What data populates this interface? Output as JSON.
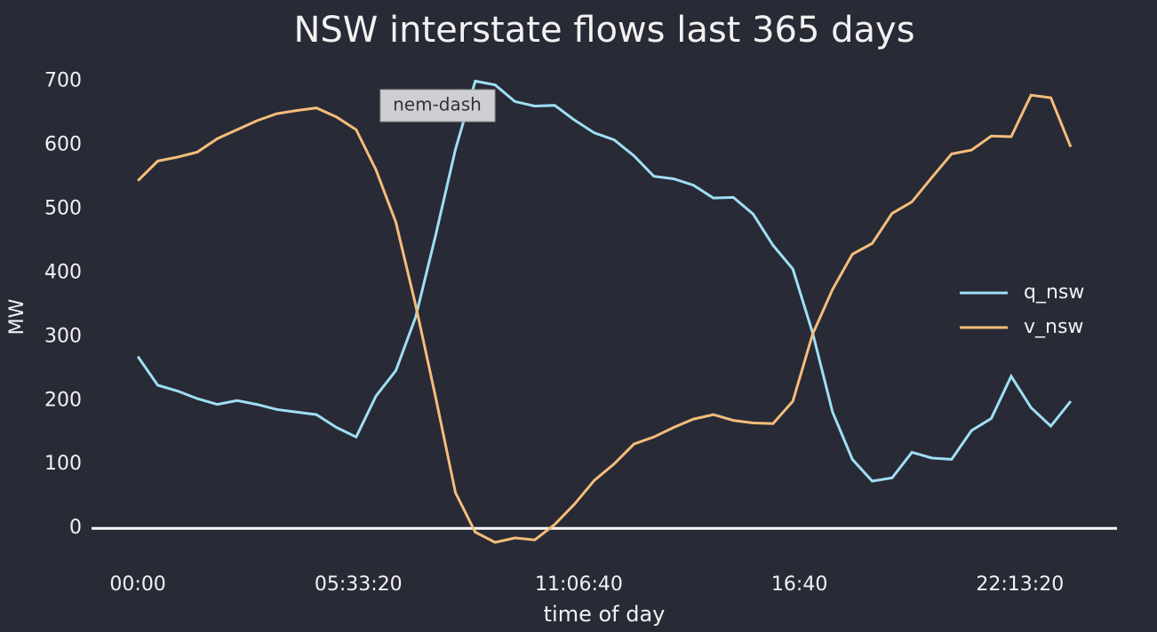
{
  "chart_data": {
    "type": "line",
    "title": "NSW interstate flows last 365 days",
    "x_label": "time of day",
    "y_label": "MW",
    "annotation": "nem-dash",
    "x": [
      0,
      1800,
      3600,
      5400,
      7200,
      9000,
      10800,
      12600,
      14400,
      16200,
      18000,
      19800,
      21600,
      23400,
      25200,
      27000,
      28800,
      30600,
      32400,
      34200,
      36000,
      37800,
      39600,
      41400,
      43200,
      45000,
      46800,
      48600,
      50400,
      52200,
      54000,
      55800,
      57600,
      59400,
      61200,
      63000,
      64800,
      66600,
      68400,
      70200,
      72000,
      73800,
      75600,
      77400,
      79200,
      81000,
      82800,
      84600
    ],
    "series": [
      {
        "name": "q_nsw",
        "color": "#9fdff3",
        "values": [
          269,
          224,
          215,
          203,
          194,
          200,
          194,
          186,
          182,
          178,
          158,
          143,
          207,
          247,
          331,
          458,
          593,
          700,
          694,
          668,
          661,
          662,
          639,
          619,
          608,
          583,
          551,
          547,
          537,
          517,
          518,
          492,
          443,
          406,
          306,
          182,
          108,
          74,
          79,
          119,
          110,
          108,
          153,
          172,
          238,
          189,
          160,
          199
        ]
      },
      {
        "name": "v_nsw",
        "color": "#f5bd7a",
        "values": [
          544,
          575,
          581,
          589,
          610,
          624,
          638,
          649,
          654,
          658,
          644,
          624,
          561,
          479,
          349,
          206,
          56,
          -6,
          -22,
          -15,
          -18,
          6,
          38,
          75,
          101,
          132,
          143,
          158,
          171,
          178,
          169,
          165,
          164,
          199,
          304,
          374,
          429,
          446,
          493,
          511,
          549,
          586,
          592,
          614,
          613,
          678,
          674,
          597
        ]
      }
    ],
    "xlim": [
      -4200,
      88800
    ],
    "xticks": [
      {
        "value": 0,
        "label": "00:00"
      },
      {
        "value": 20000,
        "label": "05:33:20"
      },
      {
        "value": 40000,
        "label": "11:06:40"
      },
      {
        "value": 60000,
        "label": "16:40"
      },
      {
        "value": 80000,
        "label": "22:13:20"
      }
    ],
    "ylim": [
      -40,
      720
    ],
    "yticks": [
      0,
      100,
      200,
      300,
      400,
      500,
      600,
      700
    ],
    "zero_line": true,
    "legend": "right",
    "background": "#282a36"
  }
}
